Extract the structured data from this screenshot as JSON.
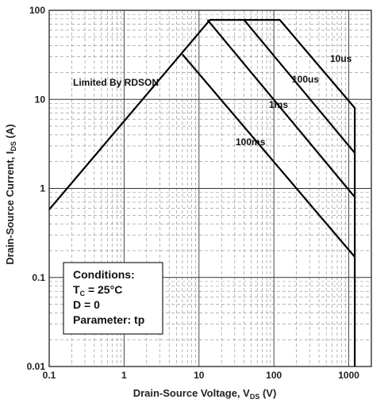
{
  "chart_data": {
    "type": "line",
    "xscale": "log",
    "yscale": "log",
    "xlim": [
      0.1,
      2000
    ],
    "ylim": [
      0.01,
      100
    ],
    "grid": true,
    "x_ticks": [
      "0.1",
      "1",
      "10",
      "100",
      "1000"
    ],
    "y_ticks": [
      "100",
      "10",
      "1",
      "0.1",
      "0.01"
    ],
    "ylabel": {
      "main": "Drain-Source Current, I",
      "sub": "DS",
      "suffix": " (A)"
    },
    "xlabel": {
      "main": "Drain-Source Voltage, V",
      "sub": "DS",
      "suffix": " (V)"
    },
    "series": [
      {
        "name": "10us",
        "x": [
          0.1,
          14,
          120,
          1200,
          1200
        ],
        "y": [
          0.58,
          78,
          78,
          8,
          0.01
        ]
      },
      {
        "name": "100us",
        "x": [
          40,
          1200
        ],
        "y": [
          78,
          2.5
        ]
      },
      {
        "name": "1ms",
        "x": [
          13,
          1200
        ],
        "y": [
          78,
          0.8
        ]
      },
      {
        "name": "100ms",
        "x": [
          6,
          1200
        ],
        "y": [
          32,
          0.17
        ]
      }
    ],
    "annotations": {
      "limited": "Limited By RDSON",
      "curve_labels": [
        "10us",
        "100us",
        "1ms",
        "100ms"
      ]
    },
    "conditions": {
      "title": "Conditions:",
      "tc_prefix": "T",
      "tc_sub": "C",
      "tc_value": " = 25°C",
      "d": "D = 0",
      "param": "Parameter: tp"
    }
  }
}
